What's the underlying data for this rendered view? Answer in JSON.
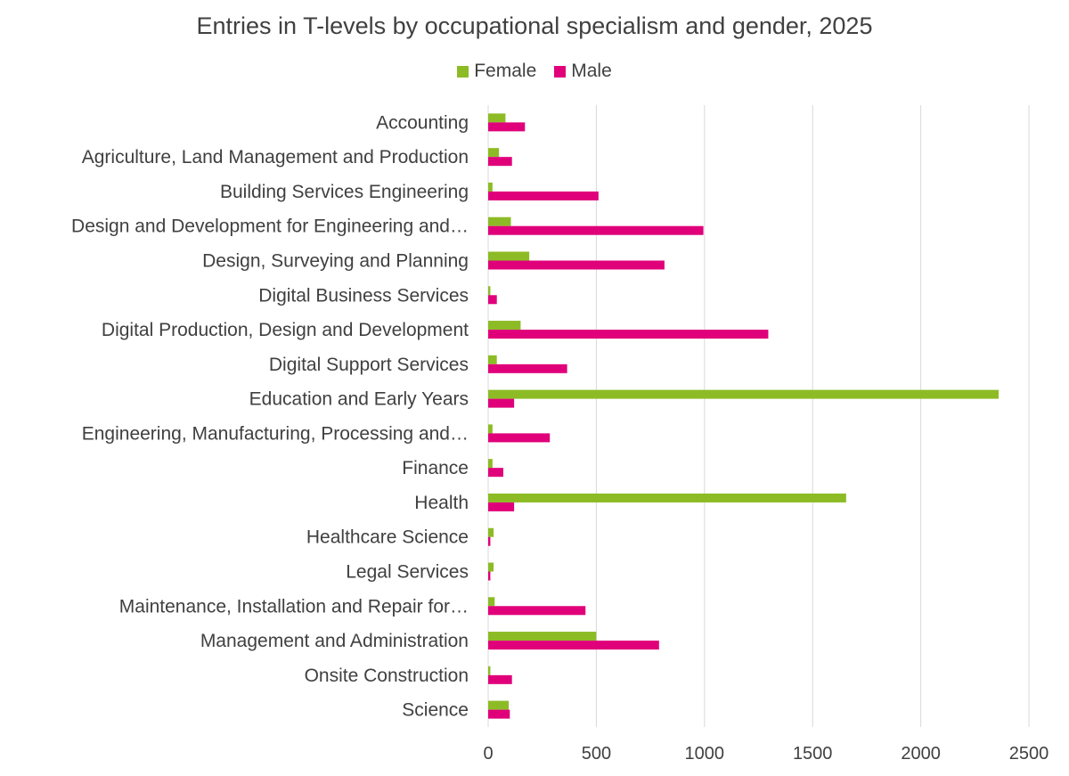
{
  "chart_data": {
    "type": "bar",
    "orientation": "horizontal",
    "title": "Entries in T-levels by occupational specialism and gender, 2025",
    "categories": [
      "Accounting",
      "Agriculture, Land Management and Production",
      "Building Services Engineering",
      "Design and Development for Engineering and…",
      "Design, Surveying and Planning",
      "Digital Business Services",
      "Digital Production, Design and Development",
      "Digital Support Services",
      "Education and Early Years",
      "Engineering, Manufacturing, Processing and…",
      "Finance",
      "Health",
      "Healthcare Science",
      "Legal Services",
      "Maintenance, Installation and Repair for…",
      "Management and Administration",
      "Onsite Construction",
      "Science"
    ],
    "series": [
      {
        "name": "Female",
        "color": "#8dbb25",
        "values": [
          80,
          50,
          20,
          105,
          190,
          10,
          150,
          40,
          2360,
          20,
          20,
          1655,
          25,
          25,
          30,
          500,
          10,
          95
        ]
      },
      {
        "name": "Male",
        "color": "#e0007a",
        "values": [
          170,
          110,
          510,
          995,
          815,
          40,
          1295,
          365,
          120,
          285,
          70,
          120,
          10,
          10,
          450,
          790,
          110,
          100
        ]
      }
    ],
    "xlim": [
      0,
      2500
    ],
    "xticks": [
      0,
      500,
      1000,
      1500,
      2000,
      2500
    ],
    "xtick_labels": [
      "0",
      "500",
      "1000",
      "1500",
      "2000",
      "2500"
    ],
    "grid": "vertical",
    "legend": "top"
  }
}
